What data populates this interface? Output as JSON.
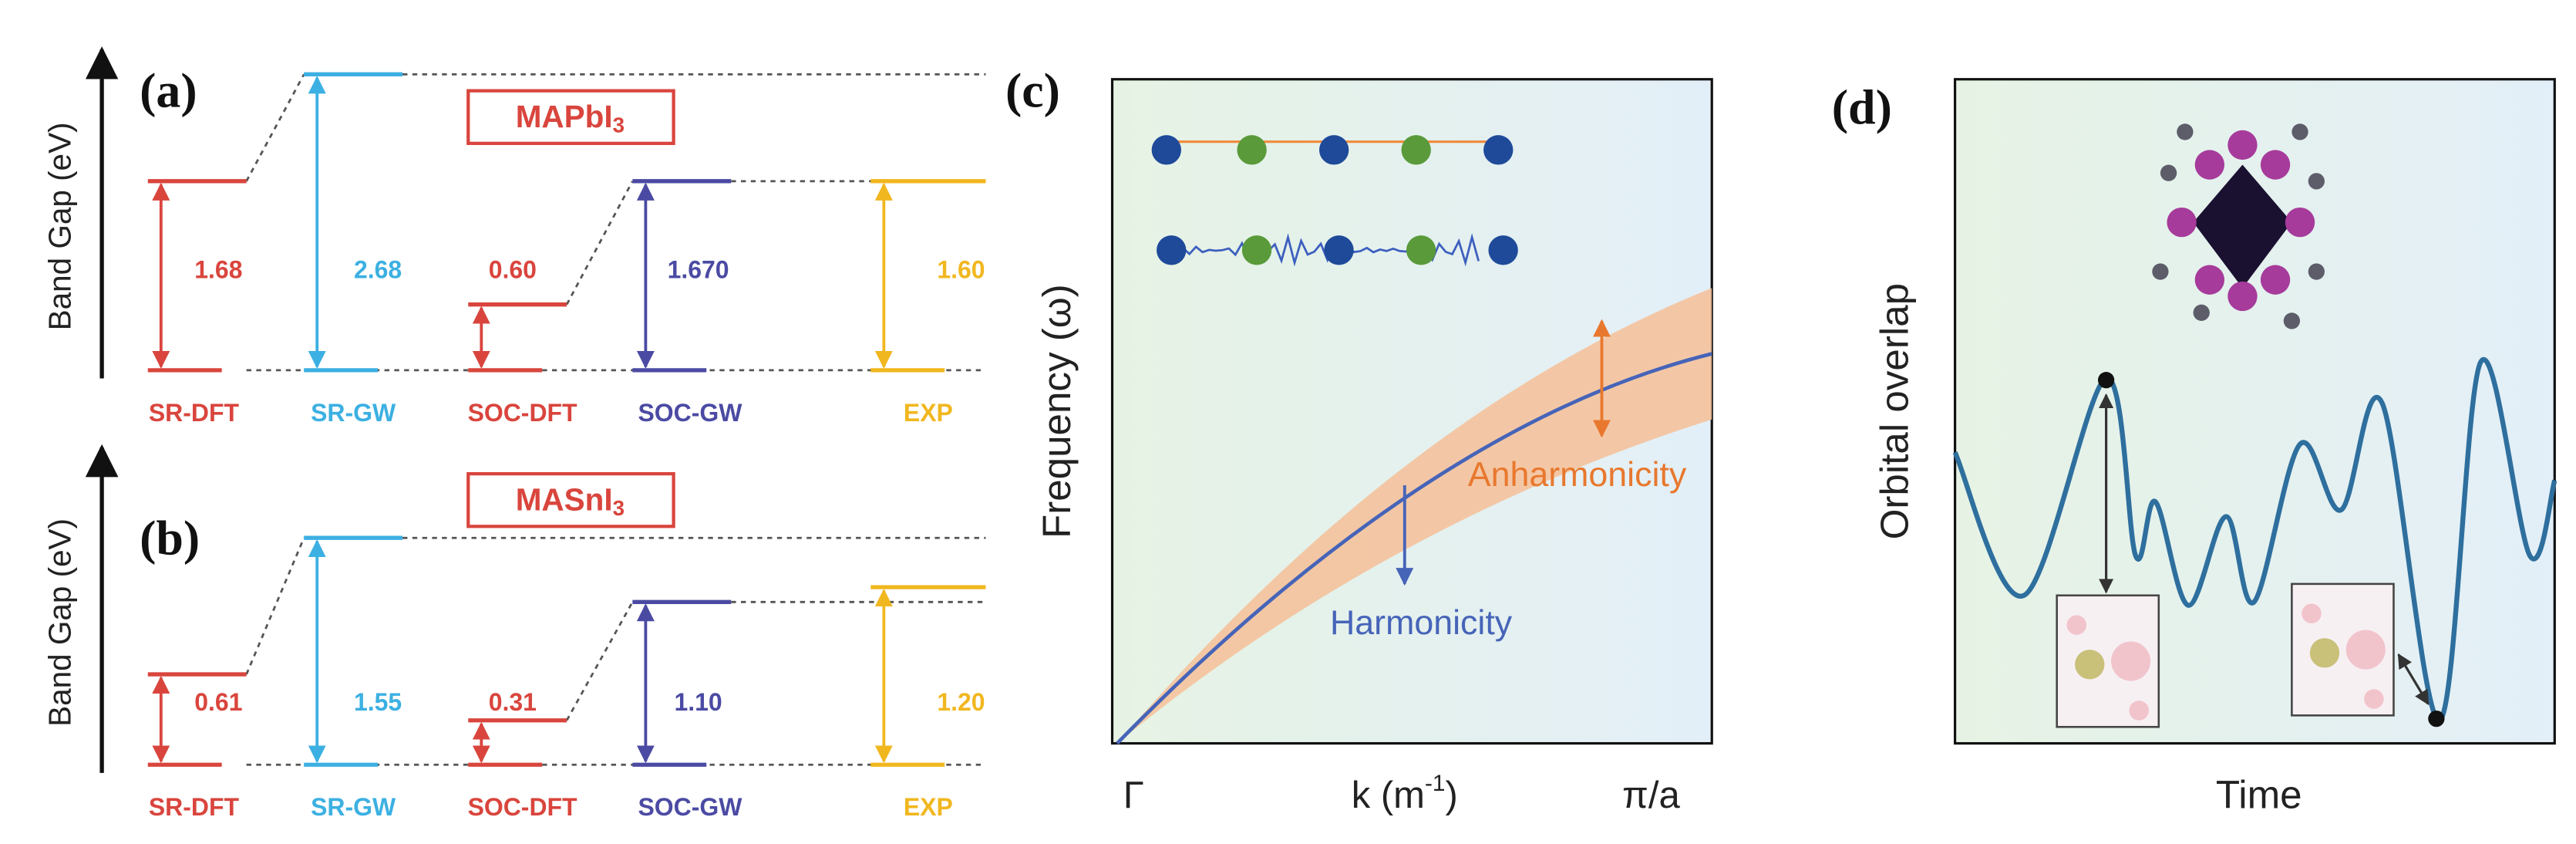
{
  "panels": {
    "a": {
      "label": "(a)",
      "y_label": "Band Gap (eV)",
      "material": "MAPbI",
      "material_sub": "3",
      "methods": [
        {
          "name": "SR-DFT",
          "value": "1.68"
        },
        {
          "name": "SR-GW",
          "value": "2.68"
        },
        {
          "name": "SOC-DFT",
          "value": "0.60"
        },
        {
          "name": "SOC-GW",
          "value": "1.670"
        },
        {
          "name": "EXP",
          "value": "1.60"
        }
      ]
    },
    "b": {
      "label": "(b)",
      "y_label": "Band Gap (eV)",
      "material": "MASnI",
      "material_sub": "3",
      "methods": [
        {
          "name": "SR-DFT",
          "value": "0.61"
        },
        {
          "name": "SR-GW",
          "value": "1.55"
        },
        {
          "name": "SOC-DFT",
          "value": "0.31"
        },
        {
          "name": "SOC-GW",
          "value": "1.10"
        },
        {
          "name": "EXP",
          "value": "1.20"
        }
      ]
    },
    "c": {
      "label": "(c)",
      "y_label": "Frequency (ω)",
      "x_left": "Γ",
      "x_label": "k (m",
      "x_label_sup": "-1",
      "x_label_end": ")",
      "x_right": "π/a",
      "annotation_upper": "Anharmonicity",
      "annotation_lower": "Harmonicity"
    },
    "d": {
      "label": "(d)",
      "y_label": "Orbital overlap",
      "x_label": "Time"
    }
  }
}
